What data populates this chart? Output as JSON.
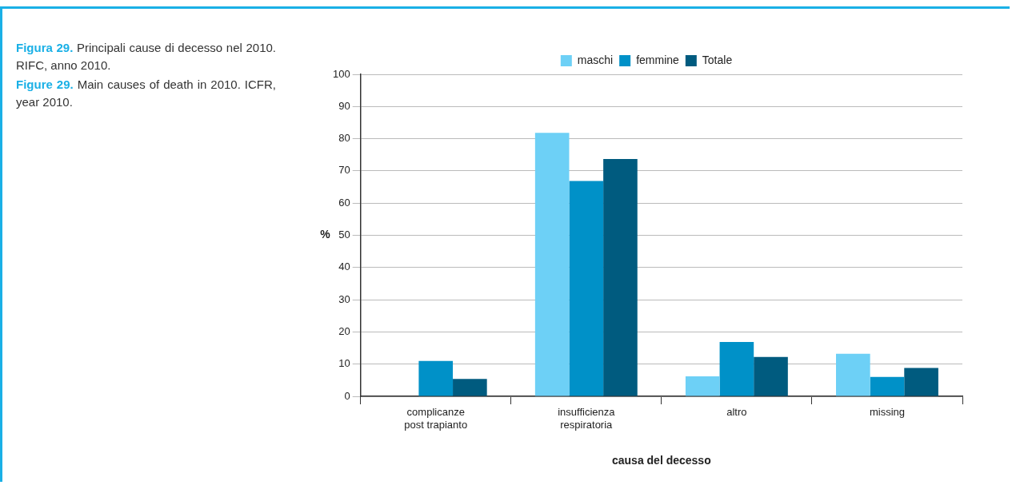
{
  "chart_data": {
    "type": "bar",
    "title": "Figura 29. Principali cause di decesso nel 2010. RIFC, anno 2010.",
    "subtitle": "Figure 29. Main causes of death in 2010. ICFR, year 2010.",
    "xlabel": "causa del decesso",
    "ylabel": "%",
    "categories": [
      "complicanze\npost trapianto",
      "insufficienza\nrespiratoria",
      "altro",
      "missing"
    ],
    "series": [
      {
        "name": "maschi",
        "color": "#6dd0f6",
        "values": [
          0,
          81.8,
          6.2,
          13.2
        ]
      },
      {
        "name": "femmine",
        "color": "#0091c8",
        "values": [
          11.0,
          66.9,
          16.9,
          6.0
        ]
      },
      {
        "name": "Totale",
        "color": "#005b7f",
        "values": [
          5.4,
          73.7,
          12.2,
          8.8
        ]
      }
    ],
    "ylim": [
      0,
      100
    ],
    "yticks": [
      0,
      10,
      20,
      30,
      40,
      50,
      60,
      70,
      80,
      90,
      100
    ],
    "grid": "y",
    "legend": "top"
  }
}
